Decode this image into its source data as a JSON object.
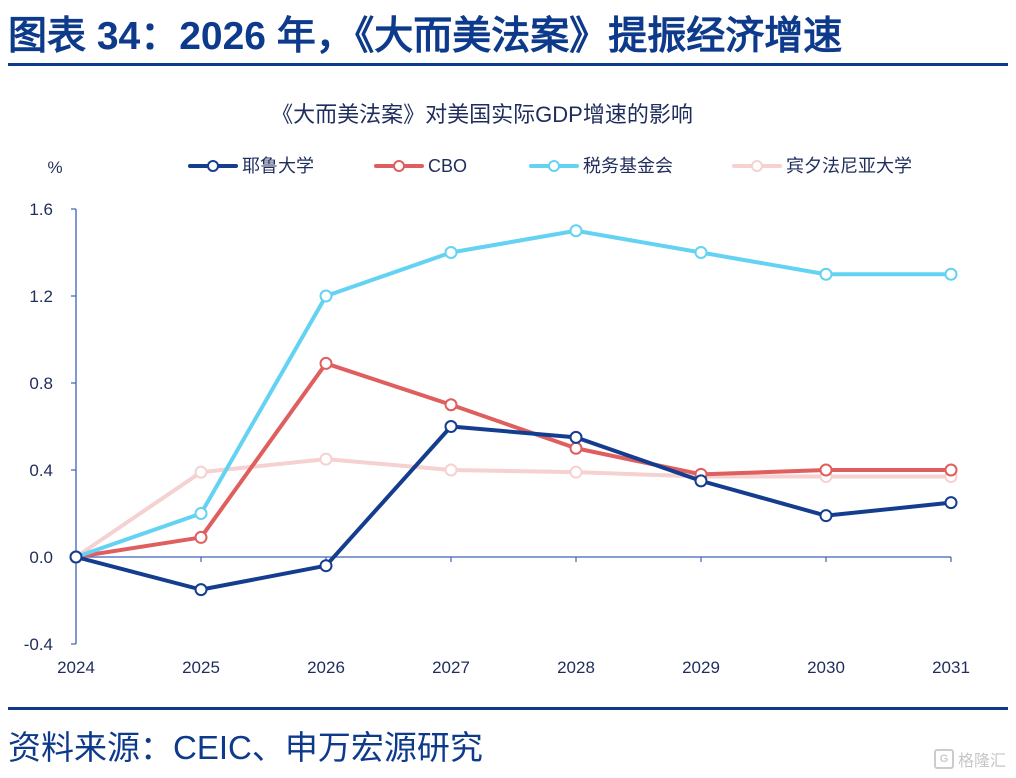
{
  "figure_title": "图表 34：2026 年，《大而美法案》提振经济增速",
  "source_note": "资料来源：CEIC、申万宏源研究",
  "watermark": "格隆汇",
  "chart_data": {
    "type": "line",
    "title": "《大而美法案》对美国实际GDP增速的影响",
    "ylabel": "%",
    "x": [
      "2024",
      "2025",
      "2026",
      "2027",
      "2028",
      "2029",
      "2030",
      "2031"
    ],
    "ylim": [
      -0.4,
      1.6
    ],
    "yticks": [
      "-0.4",
      "0.0",
      "0.4",
      "0.8",
      "1.2",
      "1.6"
    ],
    "grid": false,
    "legend_position": "top",
    "series": [
      {
        "name": "耶鲁大学",
        "color": "#143d8f",
        "values": [
          0.0,
          -0.15,
          -0.04,
          0.6,
          0.55,
          0.35,
          0.19,
          0.25
        ]
      },
      {
        "name": "CBO",
        "color": "#df5e5e",
        "values": [
          0.0,
          0.09,
          0.89,
          0.7,
          0.5,
          0.38,
          0.4,
          0.4
        ]
      },
      {
        "name": "税务基金会",
        "color": "#63d2f3",
        "values": [
          0.0,
          0.2,
          1.2,
          1.4,
          1.5,
          1.4,
          1.3,
          1.3
        ]
      },
      {
        "name": "宾夕法尼亚大学",
        "color": "#f6d1d1",
        "values": [
          0.0,
          0.39,
          0.45,
          0.4,
          0.39,
          0.37,
          0.37,
          0.37
        ]
      }
    ]
  }
}
